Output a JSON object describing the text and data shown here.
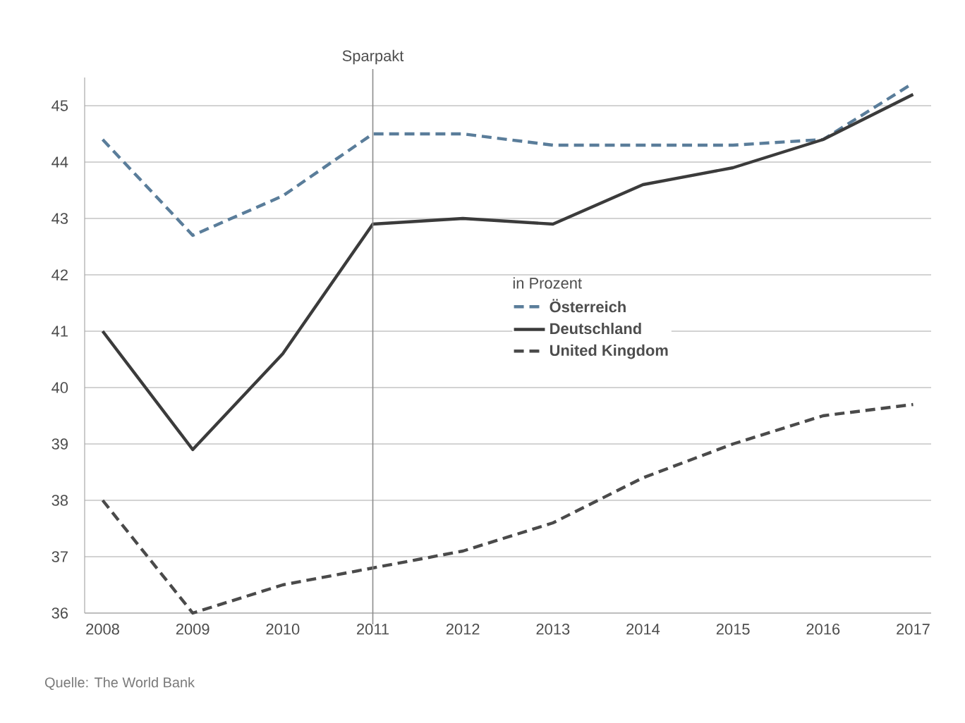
{
  "chart_data": {
    "type": "line",
    "x": [
      2008,
      2009,
      2010,
      2011,
      2012,
      2013,
      2014,
      2015,
      2016,
      2017
    ],
    "xlim": [
      2007.8,
      2017.2
    ],
    "xticks": [
      2008,
      2009,
      2010,
      2011,
      2012,
      2013,
      2014,
      2015,
      2016,
      2017
    ],
    "ylim": [
      36,
      45.5
    ],
    "yticks": [
      36,
      37,
      38,
      39,
      40,
      41,
      42,
      43,
      44,
      45
    ],
    "grid": "y",
    "legend": "right",
    "legend_title": "in Prozent",
    "series": [
      {
        "name": "Österreich",
        "color": "#5a7d9a",
        "line_style": "dashed",
        "values": [
          44.4,
          42.7,
          43.4,
          44.5,
          44.5,
          44.3,
          44.3,
          44.3,
          44.4,
          45.4
        ]
      },
      {
        "name": "Deutschland",
        "color": "#3b3b3b",
        "line_style": "solid",
        "values": [
          41.0,
          38.9,
          40.6,
          42.9,
          43.0,
          42.9,
          43.6,
          43.9,
          44.4,
          45.2
        ]
      },
      {
        "name": "United Kingdom",
        "color": "#4a4a4a",
        "line_style": "dashed",
        "values": [
          38.0,
          36.0,
          36.5,
          36.8,
          37.1,
          37.6,
          38.4,
          39.0,
          39.5,
          39.7
        ]
      }
    ],
    "ref_lines": [
      {
        "axis": "x",
        "value": 2011,
        "label": "Sparpakt",
        "color": "#8c8c8c"
      }
    ],
    "annotations": [
      "Quelle: The World Bank"
    ]
  }
}
